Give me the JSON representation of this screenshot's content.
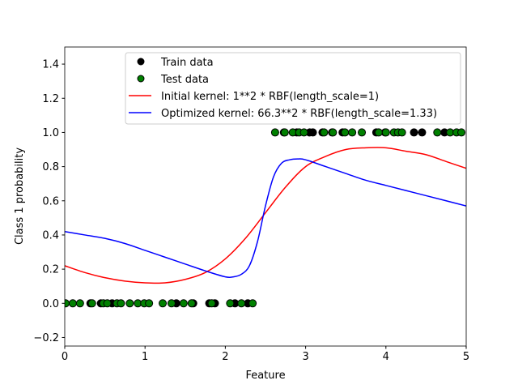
{
  "chart_data": {
    "type": "scatter",
    "xlabel": "Feature",
    "ylabel": "Class 1 probability",
    "xlim": [
      0,
      5
    ],
    "ylim": [
      -0.25,
      1.5
    ],
    "xticks": [
      "0",
      "1",
      "2",
      "3",
      "4",
      "5"
    ],
    "yticks": [
      "−0.2",
      "0.0",
      "0.2",
      "0.4",
      "0.6",
      "0.8",
      "1.0",
      "1.2",
      "1.4"
    ],
    "ytick_values": [
      -0.2,
      0,
      0.2,
      0.4,
      0.6,
      0.8,
      1.0,
      1.2,
      1.4
    ],
    "grid": false,
    "legend_position": "top-center",
    "train": {
      "name": "Train data",
      "color": "#000000",
      "points": [
        [
          0.32,
          0
        ],
        [
          0.45,
          0
        ],
        [
          0.59,
          0
        ],
        [
          1.39,
          0
        ],
        [
          1.6,
          0
        ],
        [
          1.8,
          0
        ],
        [
          1.87,
          0
        ],
        [
          2.12,
          0
        ],
        [
          2.28,
          0
        ],
        [
          2.73,
          1
        ],
        [
          2.89,
          1
        ],
        [
          3.05,
          1
        ],
        [
          3.09,
          1
        ],
        [
          3.21,
          1
        ],
        [
          3.33,
          1
        ],
        [
          3.46,
          1
        ],
        [
          3.88,
          1
        ],
        [
          3.99,
          1
        ],
        [
          4.35,
          1
        ],
        [
          4.45,
          1
        ],
        [
          4.73,
          1
        ]
      ]
    },
    "test": {
      "name": "Test data",
      "color": "#008000",
      "points": [
        [
          0.01,
          0
        ],
        [
          0.1,
          0
        ],
        [
          0.19,
          0
        ],
        [
          0.34,
          0
        ],
        [
          0.48,
          0
        ],
        [
          0.53,
          0
        ],
        [
          0.65,
          0
        ],
        [
          0.7,
          0
        ],
        [
          0.81,
          0
        ],
        [
          0.91,
          0
        ],
        [
          0.99,
          0
        ],
        [
          1.05,
          0
        ],
        [
          1.22,
          0
        ],
        [
          1.33,
          0
        ],
        [
          1.48,
          0
        ],
        [
          1.58,
          0
        ],
        [
          1.83,
          0
        ],
        [
          2.06,
          0
        ],
        [
          2.2,
          0
        ],
        [
          2.34,
          0
        ],
        [
          2.62,
          1
        ],
        [
          2.74,
          1
        ],
        [
          2.84,
          1
        ],
        [
          2.92,
          1
        ],
        [
          2.98,
          1
        ],
        [
          3.23,
          1
        ],
        [
          3.34,
          1
        ],
        [
          3.49,
          1
        ],
        [
          3.58,
          1
        ],
        [
          3.7,
          1
        ],
        [
          3.91,
          1
        ],
        [
          4.0,
          1
        ],
        [
          4.1,
          1
        ],
        [
          4.15,
          1
        ],
        [
          4.2,
          1
        ],
        [
          4.64,
          1
        ],
        [
          4.8,
          1
        ],
        [
          4.88,
          1
        ],
        [
          4.94,
          1
        ]
      ]
    },
    "series": [
      {
        "name": "Initial kernel: 1**2 * RBF(length_scale=1)",
        "color": "#ff0000",
        "x": [
          0,
          0.25,
          0.5,
          0.75,
          1,
          1.25,
          1.5,
          1.75,
          2,
          2.25,
          2.5,
          2.75,
          3,
          3.25,
          3.5,
          3.75,
          4,
          4.25,
          4.5,
          4.75,
          5
        ],
        "y": [
          0.22,
          0.18,
          0.15,
          0.13,
          0.12,
          0.12,
          0.14,
          0.18,
          0.26,
          0.38,
          0.53,
          0.68,
          0.8,
          0.86,
          0.9,
          0.91,
          0.91,
          0.89,
          0.87,
          0.83,
          0.79
        ]
      },
      {
        "name": "Optimized kernel: 66.3**2 * RBF(length_scale=1.33)",
        "color": "#0000ff",
        "x": [
          0,
          0.25,
          0.5,
          0.75,
          1,
          1.25,
          1.5,
          1.75,
          2,
          2.1,
          2.2,
          2.3,
          2.4,
          2.5,
          2.6,
          2.7,
          2.8,
          2.9,
          3,
          3.25,
          3.5,
          3.75,
          4,
          4.25,
          4.5,
          4.75,
          5
        ],
        "y": [
          0.42,
          0.4,
          0.38,
          0.35,
          0.31,
          0.27,
          0.23,
          0.19,
          0.155,
          0.155,
          0.17,
          0.22,
          0.36,
          0.57,
          0.74,
          0.82,
          0.84,
          0.845,
          0.84,
          0.8,
          0.76,
          0.72,
          0.69,
          0.66,
          0.63,
          0.6,
          0.57
        ]
      }
    ]
  }
}
